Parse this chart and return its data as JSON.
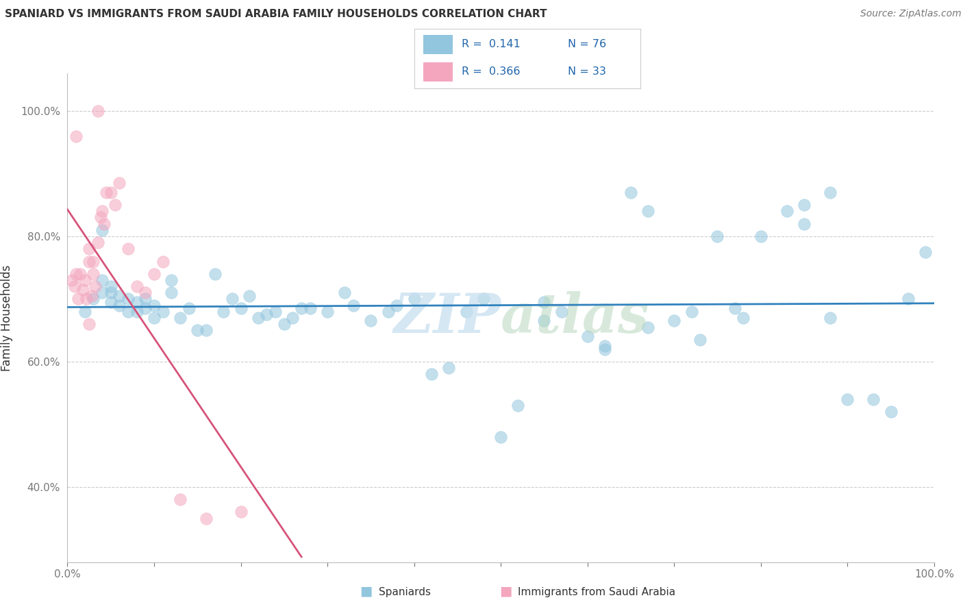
{
  "title": "SPANIARD VS IMMIGRANTS FROM SAUDI ARABIA FAMILY HOUSEHOLDS CORRELATION CHART",
  "source": "Source: ZipAtlas.com",
  "ylabel": "Family Households",
  "xlim": [
    0.0,
    1.0
  ],
  "ylim": [
    0.28,
    1.06
  ],
  "yticks": [
    0.4,
    0.6,
    0.8,
    1.0
  ],
  "ytick_labels": [
    "40.0%",
    "60.0%",
    "80.0%",
    "100.0%"
  ],
  "legend_r1": "R =  0.141",
  "legend_n1": "N = 76",
  "legend_r2": "R =  0.366",
  "legend_n2": "N = 33",
  "blue_color": "#92c5de",
  "pink_color": "#f4a6bf",
  "blue_line_color": "#3182bd",
  "pink_line_color": "#d6537a",
  "watermark_zip": "ZIP",
  "watermark_atlas": "atlas",
  "blue_scatter_x": [
    0.02,
    0.03,
    0.04,
    0.04,
    0.05,
    0.05,
    0.05,
    0.06,
    0.06,
    0.07,
    0.07,
    0.08,
    0.08,
    0.09,
    0.09,
    0.1,
    0.1,
    0.11,
    0.12,
    0.12,
    0.13,
    0.14,
    0.15,
    0.16,
    0.17,
    0.18,
    0.19,
    0.2,
    0.21,
    0.22,
    0.23,
    0.24,
    0.25,
    0.26,
    0.27,
    0.28,
    0.3,
    0.32,
    0.33,
    0.35,
    0.37,
    0.38,
    0.4,
    0.42,
    0.44,
    0.46,
    0.48,
    0.5,
    0.52,
    0.55,
    0.57,
    0.6,
    0.62,
    0.65,
    0.67,
    0.7,
    0.73,
    0.75,
    0.78,
    0.8,
    0.83,
    0.85,
    0.88,
    0.9,
    0.93,
    0.95,
    0.97,
    0.99,
    0.55,
    0.62,
    0.67,
    0.72,
    0.77,
    0.85,
    0.88,
    0.04
  ],
  "blue_scatter_y": [
    0.68,
    0.7,
    0.71,
    0.73,
    0.695,
    0.71,
    0.72,
    0.69,
    0.705,
    0.68,
    0.7,
    0.68,
    0.695,
    0.685,
    0.7,
    0.67,
    0.69,
    0.68,
    0.71,
    0.73,
    0.67,
    0.685,
    0.65,
    0.65,
    0.74,
    0.68,
    0.7,
    0.685,
    0.705,
    0.67,
    0.675,
    0.68,
    0.66,
    0.67,
    0.685,
    0.685,
    0.68,
    0.71,
    0.69,
    0.665,
    0.68,
    0.69,
    0.7,
    0.58,
    0.59,
    0.68,
    0.7,
    0.48,
    0.53,
    0.665,
    0.68,
    0.64,
    0.625,
    0.87,
    0.84,
    0.665,
    0.635,
    0.8,
    0.67,
    0.8,
    0.84,
    0.82,
    0.67,
    0.54,
    0.54,
    0.52,
    0.7,
    0.775,
    0.695,
    0.62,
    0.655,
    0.68,
    0.685,
    0.85,
    0.87,
    0.81
  ],
  "pink_scatter_x": [
    0.005,
    0.008,
    0.01,
    0.012,
    0.015,
    0.018,
    0.02,
    0.022,
    0.025,
    0.025,
    0.028,
    0.03,
    0.03,
    0.032,
    0.035,
    0.038,
    0.04,
    0.042,
    0.045,
    0.05,
    0.055,
    0.06,
    0.07,
    0.08,
    0.09,
    0.1,
    0.11,
    0.13,
    0.16,
    0.2,
    0.01,
    0.025,
    0.035
  ],
  "pink_scatter_y": [
    0.73,
    0.72,
    0.74,
    0.7,
    0.74,
    0.715,
    0.73,
    0.7,
    0.78,
    0.76,
    0.705,
    0.76,
    0.74,
    0.72,
    0.79,
    0.83,
    0.84,
    0.82,
    0.87,
    0.87,
    0.85,
    0.885,
    0.78,
    0.72,
    0.71,
    0.74,
    0.76,
    0.38,
    0.35,
    0.36,
    0.96,
    0.66,
    1.0
  ]
}
